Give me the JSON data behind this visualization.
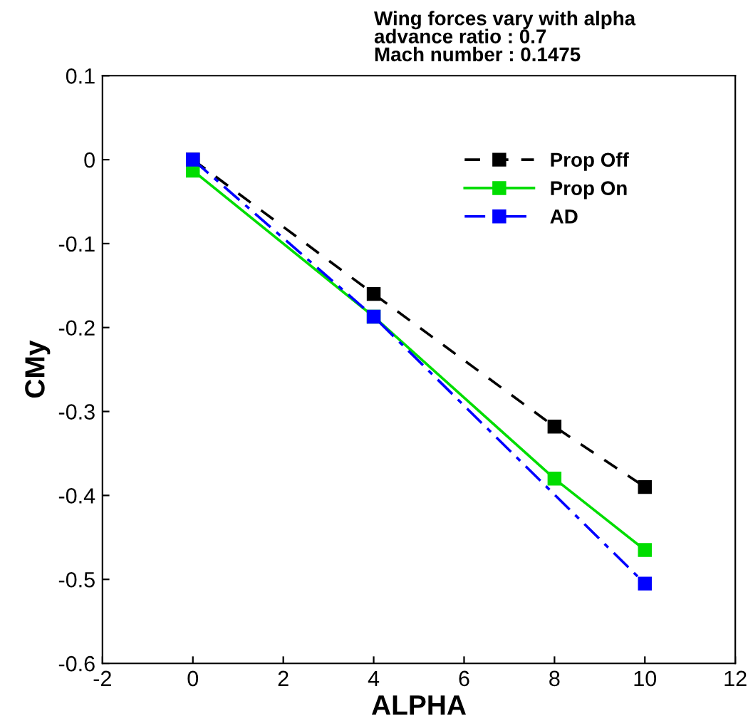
{
  "chart_data": {
    "type": "line",
    "title": "Wing forces vary with alpha",
    "annotations": [
      "advance ratio : 0.7",
      "Mach number : 0.1475"
    ],
    "xlabel": "ALPHA",
    "ylabel": "CMy",
    "xlim": [
      -2,
      12
    ],
    "xticks": [
      -2,
      0,
      2,
      4,
      6,
      8,
      10,
      12
    ],
    "ylim": [
      -0.6,
      0.1
    ],
    "yticks": [
      -0.6,
      -0.5,
      -0.4,
      -0.3,
      -0.2,
      -0.1,
      0,
      0.1
    ],
    "grid": false,
    "legend": "top right",
    "marker": "square",
    "series": [
      {
        "name": "Prop Off",
        "color": "#000000",
        "line_style": "dashed",
        "x": [
          0,
          4,
          8,
          10
        ],
        "values": [
          0,
          -0.16,
          -0.318,
          -0.39
        ]
      },
      {
        "name": "Prop On",
        "color": "#00dd00",
        "line_style": "solid",
        "x": [
          0,
          4,
          8,
          10
        ],
        "values": [
          -0.013,
          -0.187,
          -0.38,
          -0.465
        ]
      },
      {
        "name": "AD",
        "color": "#0000ff",
        "line_style": "dashdot",
        "x": [
          0,
          4,
          10
        ],
        "values": [
          0,
          -0.187,
          -0.505
        ]
      }
    ]
  }
}
